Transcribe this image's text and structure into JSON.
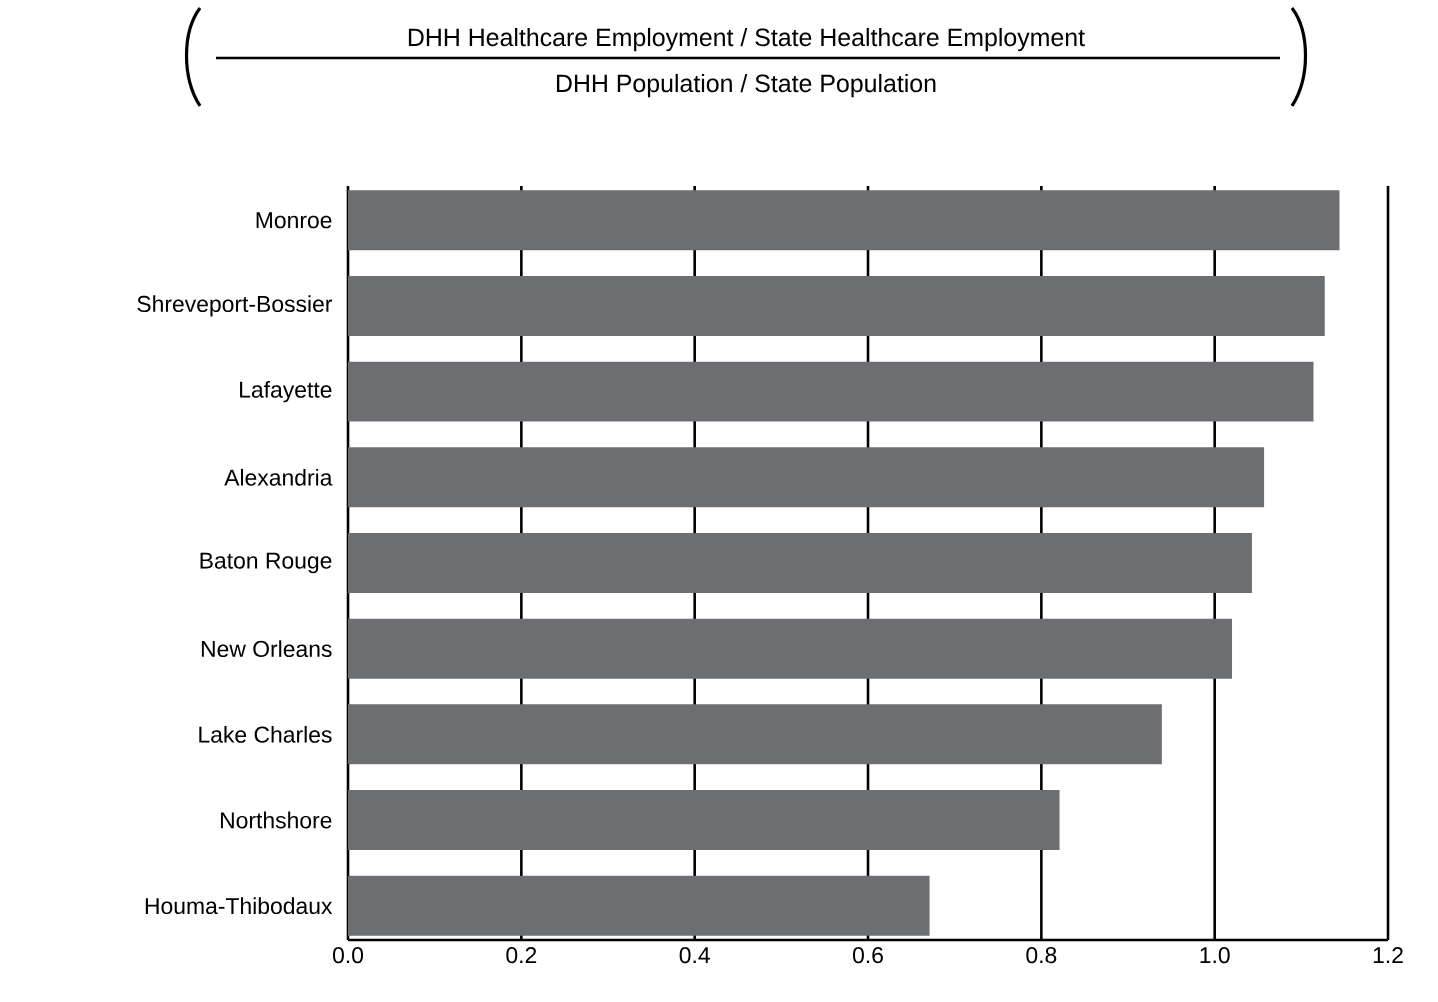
{
  "chart_data": {
    "type": "bar",
    "orientation": "horizontal",
    "title": "DHH Healthcare Employment / State Healthcare Employment",
    "subtitle": "DHH Population  / State Population",
    "categories": [
      "Monroe",
      "Shreveport-Bossier",
      "Lafayette",
      "Alexandria",
      "Baton Rouge",
      "New Orleans",
      "Lake Charles",
      "Northshore",
      "Houma-Thibodaux"
    ],
    "values": [
      1.144,
      1.127,
      1.114,
      1.057,
      1.043,
      1.02,
      0.939,
      0.821,
      0.671
    ],
    "color": "#6d6e71",
    "xlim": [
      0,
      1.2
    ],
    "xticks": [
      {
        "value": 0,
        "label": "0.0"
      },
      {
        "value": 0.2,
        "label": "0.2"
      },
      {
        "value": 0.4,
        "label": "0.4"
      },
      {
        "value": 0.6,
        "label": "0.6"
      },
      {
        "value": 0.8,
        "label": "0.8"
      },
      {
        "value": 1.0,
        "label": "1.0"
      },
      {
        "value": 1.2,
        "label": "1.2"
      }
    ],
    "grid": "x"
  }
}
